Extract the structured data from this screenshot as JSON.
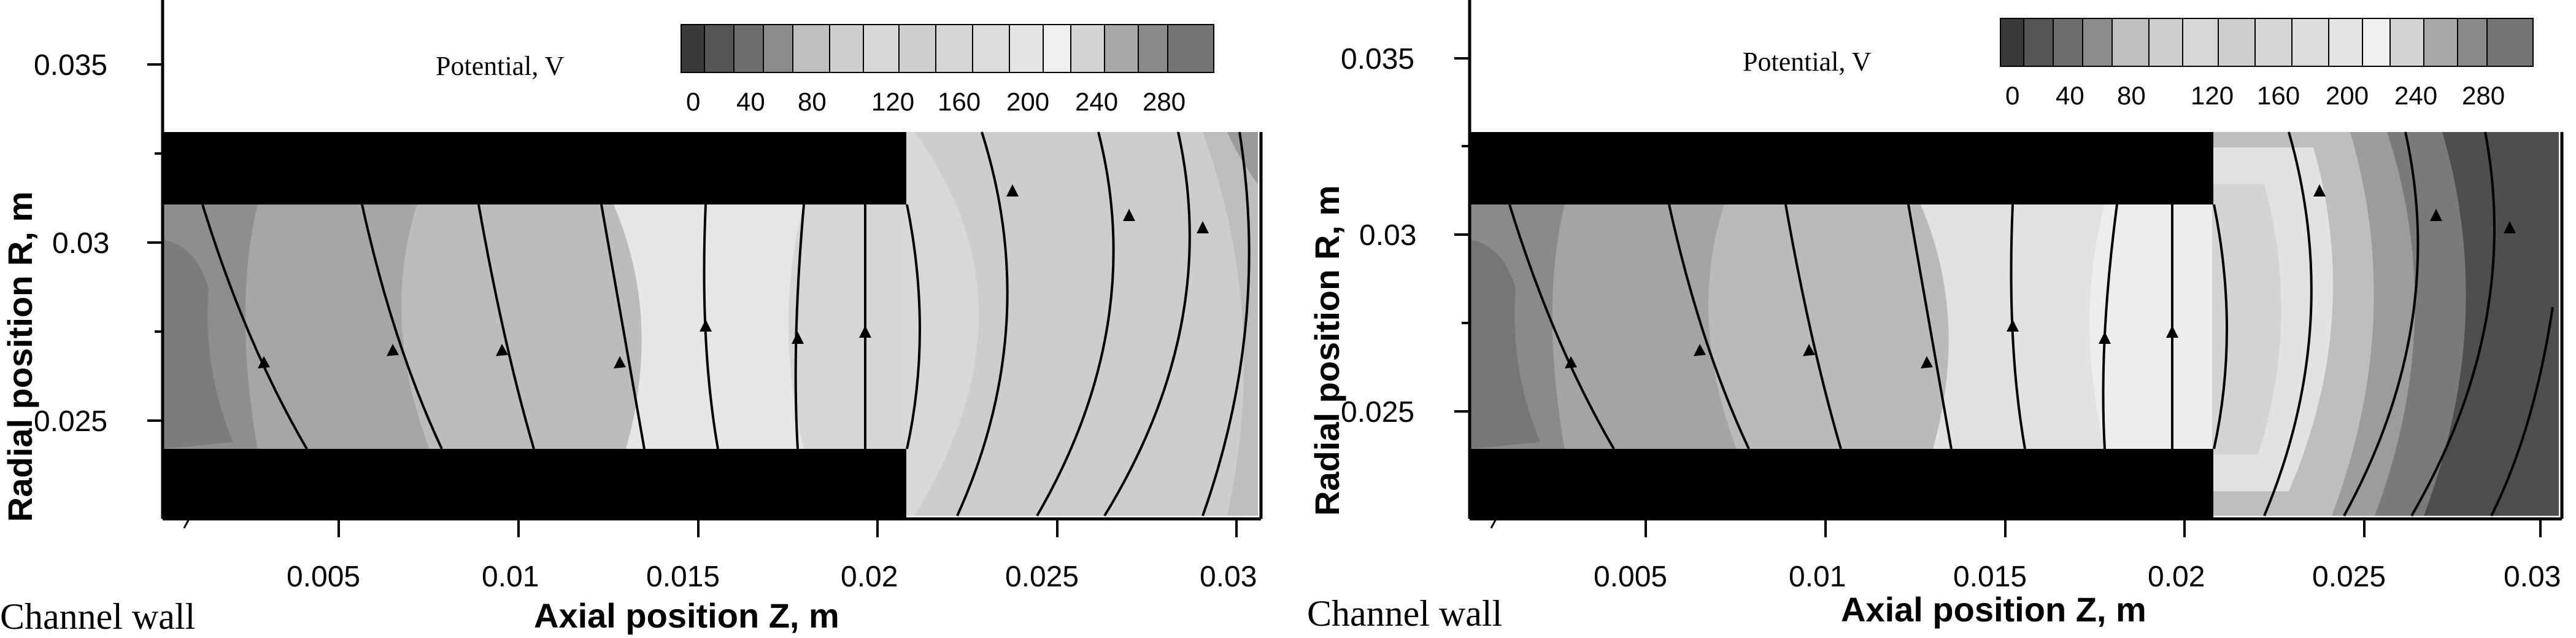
{
  "panels": [
    {
      "x_label": "Axial position Z, m",
      "y_label": "Radial position R, m",
      "legend_title": "Potential, V",
      "annotation": "Channel wall",
      "x_ticks": [
        "0.005",
        "0.01",
        "0.015",
        "0.02",
        "0.025",
        "0.03"
      ],
      "y_ticks": [
        "0.035",
        "0.03",
        "0.025"
      ],
      "legend_ticks": [
        "0",
        "40",
        "80",
        "120",
        "160",
        "200",
        "240",
        "280"
      ]
    },
    {
      "x_label": "Axial position Z, m",
      "y_label": "Radial position R, m",
      "legend_title": "Potential, V",
      "annotation": "Channel wall",
      "x_ticks": [
        "0.005",
        "0.01",
        "0.015",
        "0.02",
        "0.025",
        "0.03"
      ],
      "y_ticks": [
        "0.035",
        "0.03",
        "0.025"
      ],
      "legend_ticks": [
        "0",
        "40",
        "80",
        "120",
        "160",
        "200",
        "240",
        "280"
      ]
    }
  ],
  "colorscale": [
    "#3a3a3a",
    "#555555",
    "#6e6e6e",
    "#8c8c8c",
    "#a7a7a7",
    "#c0c0c0",
    "#cfcfcf",
    "#d8d8d8",
    "#dedede",
    "#e6e6e6",
    "#efefef",
    "#d0d0d0",
    "#b0b0b0",
    "#909090",
    "#707070"
  ]
}
